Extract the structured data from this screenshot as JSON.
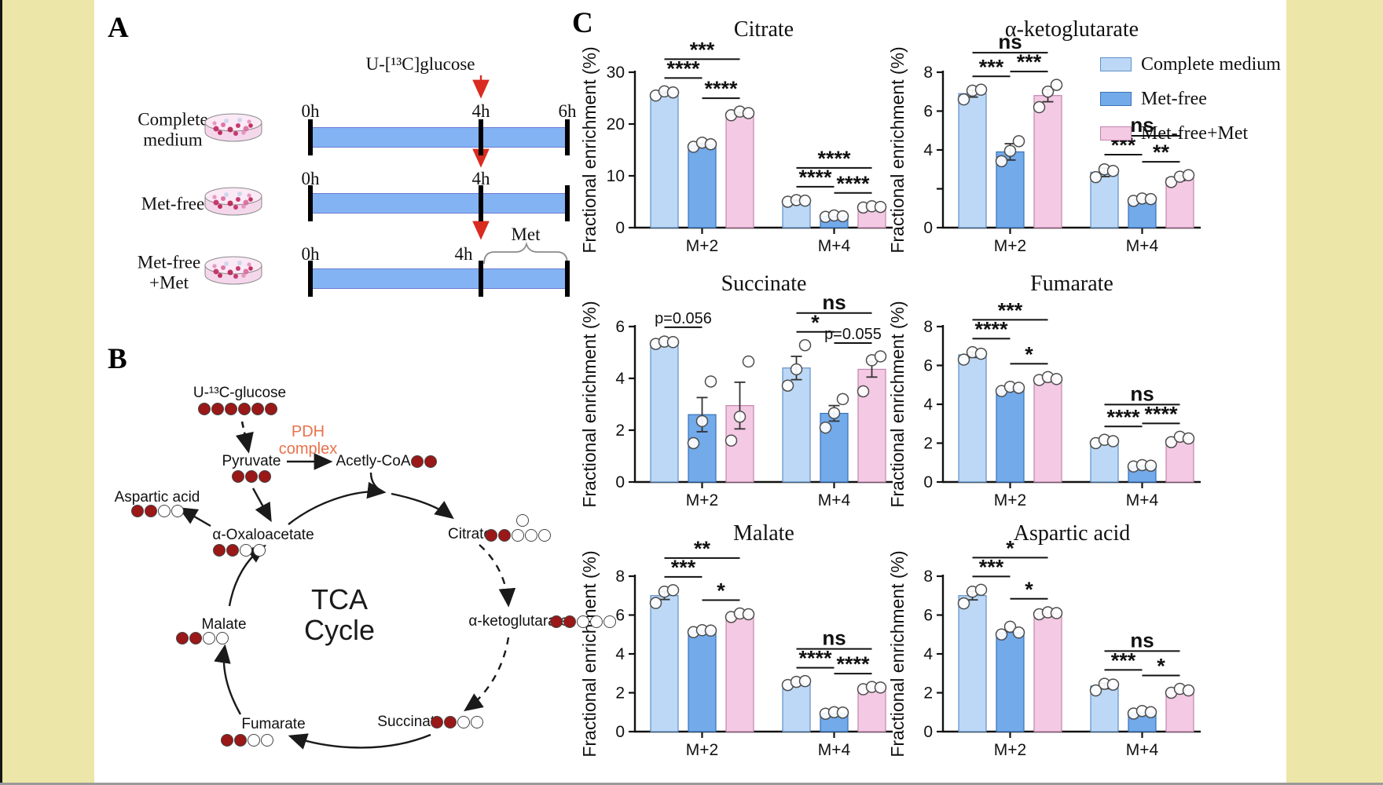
{
  "figure": {
    "background_side_color": "#ece6a8",
    "canvas_color": "#ffffff",
    "accent_red": "#d92b20",
    "timeline_blue": "#83b3f3"
  },
  "panelA": {
    "label": "A",
    "glucose_label": "U-[¹³C]glucose",
    "met_label": "Met",
    "rows": [
      {
        "name_lines": [
          "Complete",
          "medium"
        ],
        "tick_labels": [
          "0h",
          "4h",
          "6h"
        ],
        "met_bracket": false
      },
      {
        "name_lines": [
          "Met-free"
        ],
        "tick_labels": [
          "0h",
          "4h",
          ""
        ],
        "met_bracket": false
      },
      {
        "name_lines": [
          "Met-free",
          "+Met"
        ],
        "tick_labels": [
          "0h",
          "4h",
          ""
        ],
        "met_bracket": true
      }
    ]
  },
  "panelB": {
    "label": "B",
    "cycle_title_lines": [
      "TCA",
      "Cycle"
    ],
    "pdh_lines": [
      "PDH",
      "complex"
    ],
    "pdh_color": "#e8724c",
    "carbon_red": "#9a1818",
    "carbon_white": "#ffffff",
    "nodes": {
      "glucose": {
        "text": "U-¹³C-glucose",
        "red": 6,
        "white": 0
      },
      "pyruvate": {
        "text": "Pyruvate",
        "red": 3,
        "white": 0
      },
      "acetylcoa": {
        "text": "Acetly-CoA",
        "red": 2,
        "white": 0
      },
      "citrate": {
        "text": "Citrate",
        "red": 2,
        "white": 3,
        "extra_white_top": 1
      },
      "akg": {
        "text": "α-ketoglutarate",
        "red": 2,
        "white": 3
      },
      "succinate": {
        "text": "Succinate",
        "red": 2,
        "white": 2
      },
      "fumarate": {
        "text": "Fumarate",
        "red": 2,
        "white": 2
      },
      "malate": {
        "text": "Malate",
        "red": 2,
        "white": 2
      },
      "oxaloacetate": {
        "text": "α-Oxaloacetate",
        "red": 2,
        "white": 2
      },
      "aspartate": {
        "text": "Aspartic acid",
        "red": 2,
        "white": 2
      }
    }
  },
  "panelC": {
    "label": "C",
    "group_labels": [
      "M+2",
      "M+4"
    ],
    "ylabel": "Fractional enrichment (%)",
    "legend": [
      {
        "label": "Complete medium",
        "fill": "#bcd8f6",
        "stroke": "#6090c8"
      },
      {
        "label": "Met-free",
        "fill": "#72aaea",
        "stroke": "#3a72b8"
      },
      {
        "label": "Met-free+Met",
        "fill": "#f4c9e3",
        "stroke": "#c285ae"
      }
    ]
  },
  "chart_data": [
    {
      "type": "bar",
      "title": "Citrate",
      "ylabel": "Fractional enrichment (%)",
      "categories": [
        "M+2",
        "M+4"
      ],
      "ylim": [
        0,
        30
      ],
      "grid": false,
      "yticks": [
        {
          "v": 0,
          "label": "0"
        },
        {
          "v": 10,
          "label": "10"
        },
        {
          "v": 20,
          "label": "20"
        },
        {
          "v": 30,
          "label": "30"
        }
      ],
      "series": [
        {
          "name": "Complete medium",
          "values": [
            26.0,
            5.2
          ],
          "err": [
            0.25,
            0.12
          ],
          "dots": [
            [
              25.5,
              26.3,
              26.1
            ],
            [
              5.0,
              5.32,
              5.2
            ]
          ]
        },
        {
          "name": "Met-free",
          "values": [
            16.0,
            2.2
          ],
          "err": [
            0.3,
            0.1
          ],
          "dots": [
            [
              15.6,
              16.4,
              16.1
            ],
            [
              2.08,
              2.35,
              2.2
            ]
          ]
        },
        {
          "name": "Met-free+Met",
          "values": [
            22.0,
            4.0
          ],
          "err": [
            0.25,
            0.1
          ],
          "dots": [
            [
              21.7,
              22.4,
              22.1
            ],
            [
              3.88,
              4.12,
              4.0
            ]
          ]
        }
      ],
      "sig": [
        {
          "group": 0,
          "pairs": [
            {
              "a": 0,
              "b": 1,
              "label": "****"
            },
            {
              "a": 1,
              "b": 2,
              "label": "****"
            },
            {
              "a": 0,
              "b": 2,
              "label": "***",
              "top": true
            }
          ]
        },
        {
          "group": 1,
          "pairs": [
            {
              "a": 0,
              "b": 1,
              "label": "****"
            },
            {
              "a": 1,
              "b": 2,
              "label": "****"
            },
            {
              "a": 0,
              "b": 2,
              "label": "****",
              "top": true
            }
          ]
        }
      ]
    },
    {
      "type": "bar",
      "title": "α-ketoglutarate",
      "ylabel": "Fractional enrichment (%)",
      "categories": [
        "M+2",
        "M+4"
      ],
      "ylim": [
        0,
        8
      ],
      "grid": false,
      "yticks": [
        {
          "v": 0,
          "label": "0"
        },
        {
          "v": 2,
          "label": ""
        },
        {
          "v": 4,
          "label": "4"
        },
        {
          "v": 6,
          "label": "6"
        },
        {
          "v": 8,
          "label": "8"
        }
      ],
      "series": [
        {
          "name": "Complete medium",
          "values": [
            6.9,
            2.85
          ],
          "err": [
            0.18,
            0.22
          ],
          "dots": [
            [
              6.6,
              7.05,
              7.1
            ],
            [
              2.6,
              3.0,
              2.92
            ]
          ]
        },
        {
          "name": "Met-free",
          "values": [
            3.9,
            1.45
          ],
          "err": [
            0.42,
            0.07
          ],
          "dots": [
            [
              3.42,
              3.95,
              4.45
            ],
            [
              1.38,
              1.5,
              1.47
            ]
          ]
        },
        {
          "name": "Met-free+Met",
          "values": [
            6.8,
            2.55
          ],
          "err": [
            0.32,
            0.13
          ],
          "dots": [
            [
              6.2,
              7.0,
              7.35
            ],
            [
              2.35,
              2.62,
              2.7
            ]
          ]
        }
      ],
      "sig": [
        {
          "group": 0,
          "pairs": [
            {
              "a": 0,
              "b": 1,
              "label": "***"
            },
            {
              "a": 1,
              "b": 2,
              "label": "***"
            },
            {
              "a": 0,
              "b": 2,
              "label": "ns",
              "top": true
            }
          ]
        },
        {
          "group": 1,
          "pairs": [
            {
              "a": 0,
              "b": 1,
              "label": "***"
            },
            {
              "a": 1,
              "b": 2,
              "label": "**"
            },
            {
              "a": 0,
              "b": 2,
              "label": "ns",
              "top": true
            }
          ]
        }
      ]
    },
    {
      "type": "bar",
      "title": "Succinate",
      "ylabel": "Fractional enrichment (%)",
      "categories": [
        "M+2",
        "M+4"
      ],
      "ylim": [
        0,
        6
      ],
      "grid": false,
      "yticks": [
        {
          "v": 0,
          "label": "0"
        },
        {
          "v": 2,
          "label": "2"
        },
        {
          "v": 4,
          "label": "4"
        },
        {
          "v": 6,
          "label": "6"
        }
      ],
      "series": [
        {
          "name": "Complete medium",
          "values": [
            5.4,
            4.4
          ],
          "err": [
            0.06,
            0.45
          ],
          "dots": [
            [
              5.33,
              5.42,
              5.4
            ],
            [
              3.72,
              4.35,
              5.28
            ]
          ]
        },
        {
          "name": "Met-free",
          "values": [
            2.6,
            2.65
          ],
          "err": [
            0.66,
            0.3
          ],
          "dots": [
            [
              1.5,
              2.35,
              3.88
            ],
            [
              2.1,
              2.66,
              3.2
            ]
          ]
        },
        {
          "name": "Met-free+Met",
          "values": [
            2.95,
            4.35
          ],
          "err": [
            0.9,
            0.3
          ],
          "dots": [
            [
              1.6,
              2.52,
              4.65
            ],
            [
              3.5,
              4.7,
              4.85
            ]
          ]
        }
      ],
      "sig": [
        {
          "group": 0,
          "pairs": [
            {
              "a": 0,
              "b": 1,
              "label": "p=0.056"
            }
          ]
        },
        {
          "group": 1,
          "pairs": [
            {
              "a": 0,
              "b": 1,
              "label": "*"
            },
            {
              "a": 1,
              "b": 2,
              "label": "p=0.055"
            },
            {
              "a": 0,
              "b": 2,
              "label": "ns",
              "top": true
            }
          ]
        }
      ]
    },
    {
      "type": "bar",
      "title": "Fumarate",
      "ylabel": "Fractional enrichment (%)",
      "categories": [
        "M+2",
        "M+4"
      ],
      "ylim": [
        0,
        8
      ],
      "grid": false,
      "yticks": [
        {
          "v": 0,
          "label": "0"
        },
        {
          "v": 2,
          "label": "2"
        },
        {
          "v": 4,
          "label": "4"
        },
        {
          "v": 6,
          "label": "6"
        },
        {
          "v": 8,
          "label": "8"
        }
      ],
      "series": [
        {
          "name": "Complete medium",
          "values": [
            6.55,
            2.1
          ],
          "err": [
            0.14,
            0.07
          ],
          "dots": [
            [
              6.3,
              6.68,
              6.6
            ],
            [
              2.0,
              2.17,
              2.1
            ]
          ]
        },
        {
          "name": "Met-free",
          "values": [
            4.8,
            0.82
          ],
          "err": [
            0.07,
            0.04
          ],
          "dots": [
            [
              4.68,
              4.9,
              4.85
            ],
            [
              0.8,
              0.87,
              0.84
            ]
          ]
        },
        {
          "name": "Met-free+Met",
          "values": [
            5.3,
            2.2
          ],
          "err": [
            0.05,
            0.1
          ],
          "dots": [
            [
              5.25,
              5.4,
              5.3
            ],
            [
              2.05,
              2.33,
              2.24
            ]
          ]
        }
      ],
      "sig": [
        {
          "group": 0,
          "pairs": [
            {
              "a": 0,
              "b": 1,
              "label": "****"
            },
            {
              "a": 1,
              "b": 2,
              "label": "*"
            },
            {
              "a": 0,
              "b": 2,
              "label": "***",
              "top": true
            }
          ]
        },
        {
          "group": 1,
          "pairs": [
            {
              "a": 0,
              "b": 1,
              "label": "****"
            },
            {
              "a": 1,
              "b": 2,
              "label": "****"
            },
            {
              "a": 0,
              "b": 2,
              "label": "ns",
              "top": true
            }
          ]
        }
      ]
    },
    {
      "type": "bar",
      "title": "Malate",
      "ylabel": "Fractional enrichment (%)",
      "categories": [
        "M+2",
        "M+4"
      ],
      "ylim": [
        0,
        8
      ],
      "grid": false,
      "yticks": [
        {
          "v": 0,
          "label": "0"
        },
        {
          "v": 2,
          "label": "2"
        },
        {
          "v": 4,
          "label": "4"
        },
        {
          "v": 6,
          "label": "6"
        },
        {
          "v": 8,
          "label": "8"
        }
      ],
      "series": [
        {
          "name": "Complete medium",
          "values": [
            7.0,
            2.5
          ],
          "err": [
            0.2,
            0.07
          ],
          "dots": [
            [
              6.62,
              7.2,
              7.28
            ],
            [
              2.4,
              2.56,
              2.6
            ]
          ]
        },
        {
          "name": "Met-free",
          "values": [
            5.2,
            0.95
          ],
          "err": [
            0.04,
            0.04
          ],
          "dots": [
            [
              5.12,
              5.22,
              5.2
            ],
            [
              0.92,
              1.0,
              0.98
            ]
          ]
        },
        {
          "name": "Met-free+Met",
          "values": [
            6.0,
            2.25
          ],
          "err": [
            0.06,
            0.05
          ],
          "dots": [
            [
              5.9,
              6.08,
              6.04
            ],
            [
              2.18,
              2.3,
              2.27
            ]
          ]
        }
      ],
      "sig": [
        {
          "group": 0,
          "pairs": [
            {
              "a": 0,
              "b": 1,
              "label": "***"
            },
            {
              "a": 1,
              "b": 2,
              "label": "*"
            },
            {
              "a": 0,
              "b": 2,
              "label": "**",
              "top": true
            }
          ]
        },
        {
          "group": 1,
          "pairs": [
            {
              "a": 0,
              "b": 1,
              "label": "****"
            },
            {
              "a": 1,
              "b": 2,
              "label": "****"
            },
            {
              "a": 0,
              "b": 2,
              "label": "ns",
              "top": true
            }
          ]
        }
      ]
    },
    {
      "type": "bar",
      "title": "Aspartic acid",
      "ylabel": "Fractional enrichment (%)",
      "categories": [
        "M+2",
        "M+4"
      ],
      "ylim": [
        0,
        8
      ],
      "grid": false,
      "yticks": [
        {
          "v": 0,
          "label": "0"
        },
        {
          "v": 2,
          "label": "2"
        },
        {
          "v": 4,
          "label": "4"
        },
        {
          "v": 6,
          "label": "6"
        },
        {
          "v": 8,
          "label": "8"
        }
      ],
      "series": [
        {
          "name": "Complete medium",
          "values": [
            7.0,
            2.35
          ],
          "err": [
            0.22,
            0.14
          ],
          "dots": [
            [
              6.6,
              7.2,
              7.3
            ],
            [
              2.12,
              2.46,
              2.42
            ]
          ]
        },
        {
          "name": "Met-free",
          "values": [
            5.1,
            0.97
          ],
          "err": [
            0.1,
            0.05
          ],
          "dots": [
            [
              5.0,
              5.4,
              5.1
            ],
            [
              0.93,
              1.06,
              1.0
            ]
          ]
        },
        {
          "name": "Met-free+Met",
          "values": [
            6.1,
            2.1
          ],
          "err": [
            0.05,
            0.07
          ],
          "dots": [
            [
              6.04,
              6.14,
              6.1
            ],
            [
              2.0,
              2.2,
              2.12
            ]
          ]
        }
      ],
      "sig": [
        {
          "group": 0,
          "pairs": [
            {
              "a": 0,
              "b": 1,
              "label": "***"
            },
            {
              "a": 1,
              "b": 2,
              "label": "*"
            },
            {
              "a": 0,
              "b": 2,
              "label": "*",
              "top": true
            }
          ]
        },
        {
          "group": 1,
          "pairs": [
            {
              "a": 0,
              "b": 1,
              "label": "***"
            },
            {
              "a": 1,
              "b": 2,
              "label": "*"
            },
            {
              "a": 0,
              "b": 2,
              "label": "ns",
              "top": true
            }
          ]
        }
      ]
    }
  ]
}
